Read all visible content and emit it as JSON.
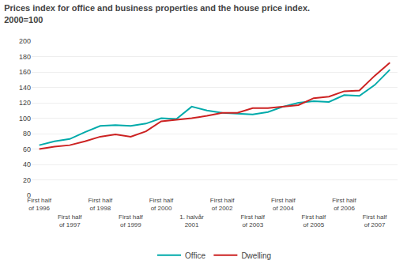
{
  "chart_data": {
    "type": "line",
    "title": "Prices index for office and business properties and the house price index.",
    "subtitle": "2000=100",
    "categories": [
      "First half\nof 1996",
      null,
      "First half\nof 1997",
      null,
      "First half\nof 1998",
      null,
      "First half\nof 1999",
      null,
      "First half\nof 2000",
      null,
      "1. halvår\n2001",
      null,
      "First half\nof 2002",
      null,
      "First half\nof 2003",
      null,
      "First half\nof 2004",
      null,
      "First half\nof 2005",
      null,
      "First half\nof 2006",
      null,
      "First half\nof 2007",
      null
    ],
    "series": [
      {
        "name": "Office",
        "color": "#00aaaa",
        "values": [
          65,
          70,
          73,
          82,
          90,
          91,
          90,
          93,
          100,
          99,
          115,
          110,
          107,
          106,
          105,
          108,
          115,
          120,
          122,
          121,
          130,
          129,
          143,
          163
        ]
      },
      {
        "name": "Dwelling",
        "color": "#cc2222",
        "values": [
          60,
          63,
          65,
          70,
          76,
          79,
          76,
          83,
          96,
          98,
          100,
          103,
          107,
          107,
          113,
          113,
          115,
          117,
          126,
          128,
          135,
          136,
          155,
          172
        ]
      }
    ],
    "ylim": [
      0,
      200
    ],
    "yticks": [
      0,
      20,
      40,
      60,
      80,
      100,
      120,
      140,
      160,
      180,
      200
    ],
    "grid": true,
    "legend": "bottom"
  }
}
